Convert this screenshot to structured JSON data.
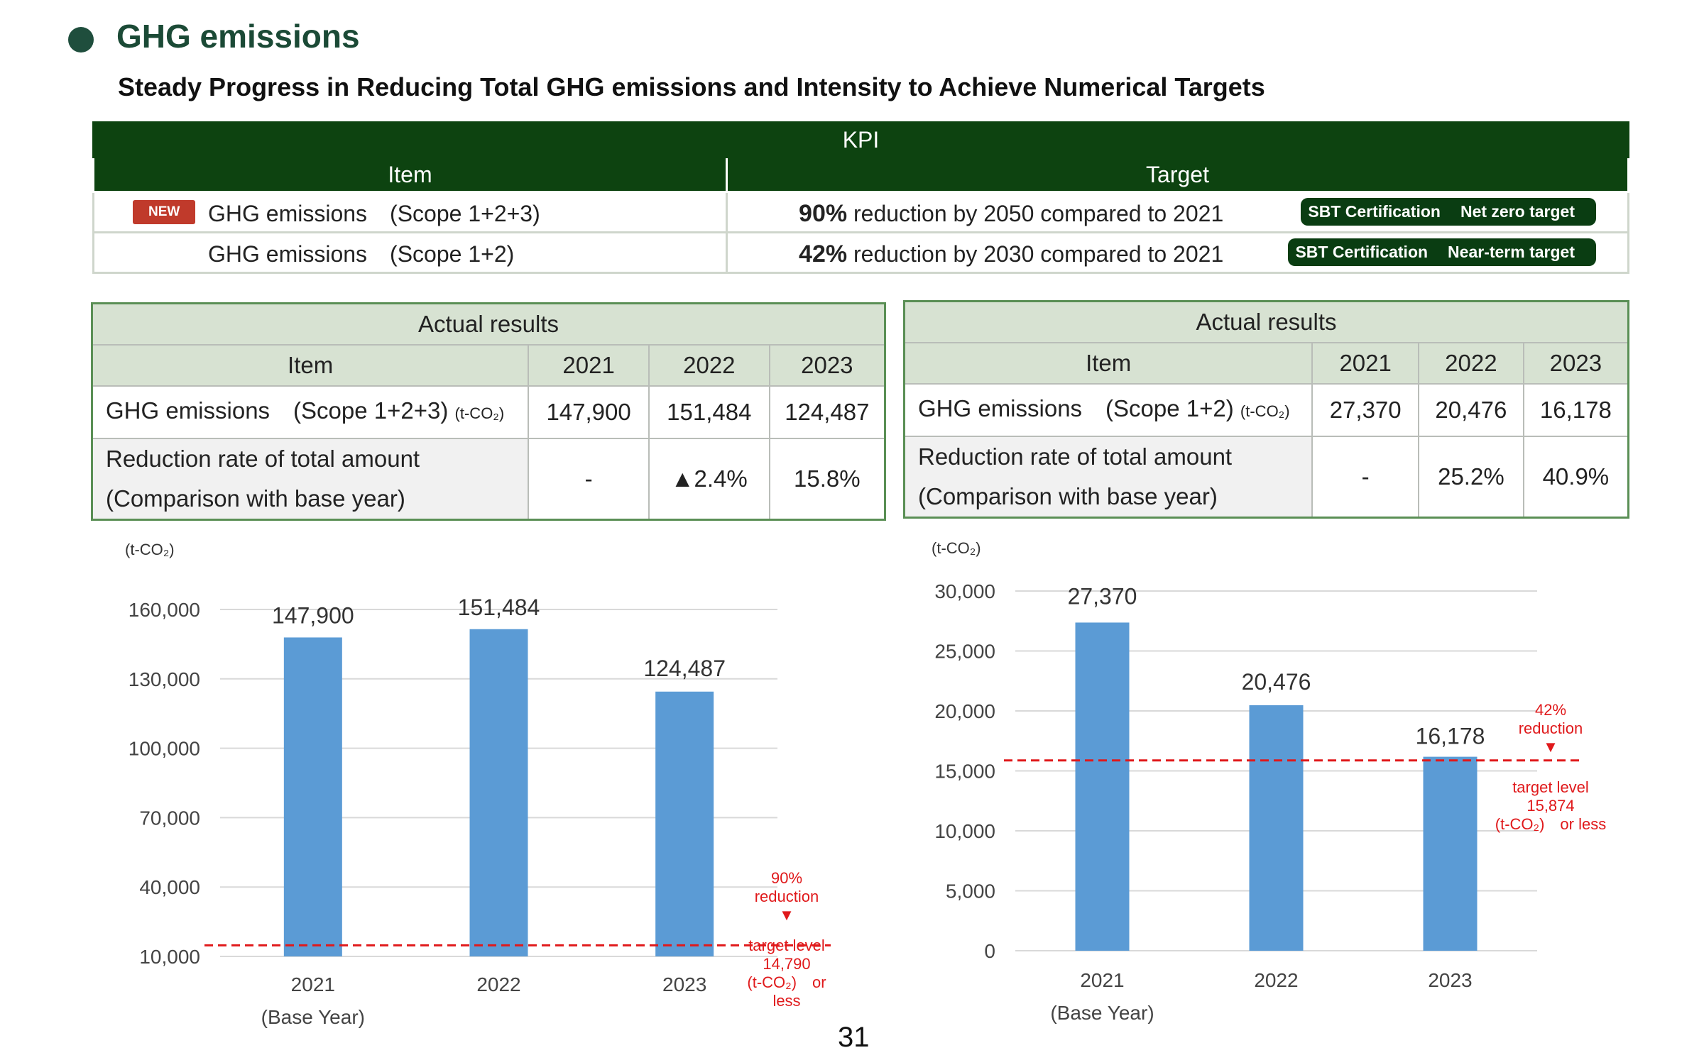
{
  "header": {
    "title": "GHG emissions",
    "subtitle": "Steady Progress in Reducing Total GHG emissions and Intensity to Achieve Numerical Targets"
  },
  "kpi": {
    "title": "KPI",
    "col_item": "Item",
    "col_target": "Target",
    "rows": [
      {
        "badge": "NEW",
        "item": "GHG emissions　(Scope 1+2+3)",
        "target_pct": "90%",
        "target_rest": " reduction by 2050 compared to 2021",
        "sbt_a": "SBT  Certification",
        "sbt_b": "Net zero target"
      },
      {
        "badge": "",
        "item": "GHG emissions　(Scope 1+2)",
        "target_pct": "42%",
        "target_rest": " reduction by 2030 compared to 2021",
        "sbt_a": "SBT  Certification",
        "sbt_b": "Near-term target"
      }
    ]
  },
  "results_left": {
    "title": "Actual  results",
    "col_item": "Item",
    "years": [
      "2021",
      "2022",
      "2023"
    ],
    "row1_label": "GHG  emissions　(Scope 1+2+3)",
    "row1_unit": "(t-CO₂)",
    "row1_values": [
      "147,900",
      "151,484",
      "124,487"
    ],
    "row2_label_a": "Reduction rate of total amount",
    "row2_label_b": "(Comparison with base year)",
    "row2_values": [
      "-",
      "▲2.4%",
      "15.8%"
    ]
  },
  "results_right": {
    "title": "Actual  results",
    "col_item": "Item",
    "years": [
      "2021",
      "2022",
      "2023"
    ],
    "row1_label": "GHG  emissions　(Scope 1+2)",
    "row1_unit": "(t-CO₂)",
    "row1_values": [
      "27,370",
      "20,476",
      "16,178"
    ],
    "row2_label_a": "Reduction rate of total amount",
    "row2_label_b": "(Comparison with base year)",
    "row2_values": [
      "-",
      "25.2%",
      "40.9%"
    ]
  },
  "chart_data": [
    {
      "type": "bar",
      "unit": "(t-CO₂)",
      "categories": [
        "2021",
        "2022",
        "2023"
      ],
      "category_sub": [
        "(Base Year)",
        "",
        ""
      ],
      "values": [
        147900,
        151484,
        124487
      ],
      "value_labels": [
        "147,900",
        "151,484",
        "124,487"
      ],
      "ylim": [
        10000,
        160000
      ],
      "yticks": [
        10000,
        40000,
        70000,
        100000,
        130000,
        160000
      ],
      "ytick_labels": [
        "10,000",
        "40,000",
        "70,000",
        "100,000",
        "130,000",
        "160,000"
      ],
      "target_value": 14790,
      "annotation_top": [
        "90%",
        "reduction",
        "▼"
      ],
      "annotation_bottom": [
        "target level",
        "14,790",
        "(t-CO₂)　or",
        "less"
      ],
      "bar_color": "#5b9bd5",
      "target_color": "#e0191b",
      "grid": true
    },
    {
      "type": "bar",
      "unit": "(t-CO₂)",
      "categories": [
        "2021",
        "2022",
        "2023"
      ],
      "category_sub": [
        "(Base Year)",
        "",
        ""
      ],
      "values": [
        27370,
        20476,
        16178
      ],
      "value_labels": [
        "27,370",
        "20,476",
        "16,178"
      ],
      "ylim": [
        0,
        30000
      ],
      "yticks": [
        0,
        5000,
        10000,
        15000,
        20000,
        25000,
        30000
      ],
      "ytick_labels": [
        "0",
        "5,000",
        "10,000",
        "15,000",
        "20,000",
        "25,000",
        "30,000"
      ],
      "target_value": 15874,
      "annotation_top": [
        "42%",
        "reduction",
        "▼"
      ],
      "annotation_bottom": [
        "target level",
        "15,874",
        "(t-CO₂)　or less"
      ],
      "bar_color": "#5b9bd5",
      "target_color": "#e0191b",
      "grid": true
    }
  ],
  "page_number": "31"
}
